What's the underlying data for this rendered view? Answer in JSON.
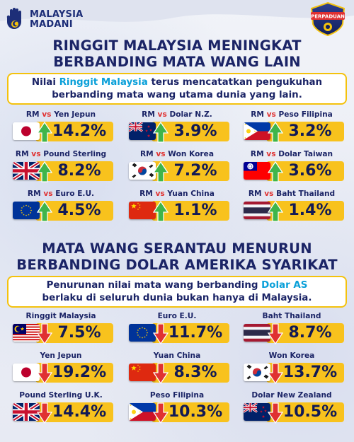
{
  "brand": {
    "line1": "MALAYSIA",
    "line2": "MADANI",
    "badge_text": "PERPADUAN"
  },
  "section1": {
    "title_line1": "RINGGIT MALAYSIA MENINGKAT",
    "title_line2": "BERBANDING MATA WANG LAIN",
    "subtitle_pre": "Nilai ",
    "subtitle_highlight": "Ringgit Malaysia",
    "subtitle_post": " terus mencatatkan pengukuhan",
    "subtitle_line2": "berbanding mata wang utama dunia yang lain.",
    "items": [
      {
        "rm": "RM",
        "vs": "vs",
        "currency": "Yen Jepun",
        "value": "14.2%",
        "flag": "japan-flag-icon"
      },
      {
        "rm": "RM",
        "vs": "vs",
        "currency": "Dolar N.Z.",
        "value": "3.9%",
        "flag": "new-zealand-flag-icon"
      },
      {
        "rm": "RM",
        "vs": "vs",
        "currency": "Peso Filipina",
        "value": "3.2%",
        "flag": "philippines-flag-icon"
      },
      {
        "rm": "RM",
        "vs": "vs",
        "currency": "Pound Sterling",
        "value": "8.2%",
        "flag": "uk-flag-icon"
      },
      {
        "rm": "RM",
        "vs": "vs",
        "currency": "Won Korea",
        "value": "7.2%",
        "flag": "south-korea-flag-icon"
      },
      {
        "rm": "RM",
        "vs": "vs",
        "currency": "Dolar Taiwan",
        "value": "3.6%",
        "flag": "taiwan-flag-icon"
      },
      {
        "rm": "RM",
        "vs": "vs",
        "currency": "Euro E.U.",
        "value": "4.5%",
        "flag": "eu-flag-icon"
      },
      {
        "rm": "RM",
        "vs": "vs",
        "currency": "Yuan China",
        "value": "1.1%",
        "flag": "china-flag-icon"
      },
      {
        "rm": "RM",
        "vs": "vs",
        "currency": "Baht Thailand",
        "value": "1.4%",
        "flag": "thailand-flag-icon"
      }
    ]
  },
  "section2": {
    "title_line1": "MATA WANG SERANTAU MENURUN",
    "title_line2": "BERBANDING DOLAR AMERIKA SYARIKAT",
    "subtitle_pre": "Penurunan nilai mata wang berbanding ",
    "subtitle_highlight": "Dolar AS",
    "subtitle_line2": "berlaku di seluruh dunia bukan hanya di Malaysia.",
    "items": [
      {
        "currency": "Ringgit Malaysia",
        "value": "7.5%",
        "flag": "malaysia-flag-icon"
      },
      {
        "currency": "Euro E.U.",
        "value": "11.7%",
        "flag": "eu-flag-icon"
      },
      {
        "currency": "Baht Thailand",
        "value": "8.7%",
        "flag": "thailand-flag-icon"
      },
      {
        "currency": "Yen Jepun",
        "value": "19.2%",
        "flag": "japan-flag-icon"
      },
      {
        "currency": "Yuan China",
        "value": "8.3%",
        "flag": "china-flag-icon"
      },
      {
        "currency": "Won Korea",
        "value": "13.7%",
        "flag": "south-korea-flag-icon"
      },
      {
        "currency": "Pound Sterling U.K.",
        "value": "14.4%",
        "flag": "uk-flag-icon"
      },
      {
        "currency": "Peso Filipina",
        "value": "10.3%",
        "flag": "philippines-flag-icon"
      },
      {
        "currency": "Dolar New Zealand",
        "value": "10.5%",
        "flag": "new-zealand-flag-icon"
      }
    ]
  },
  "colors": {
    "navy": "#1b2466",
    "gold": "#f8c21d",
    "up_arrow": "#3fb54a",
    "down_arrow": "#e03131",
    "highlight": "#0aa0d9"
  }
}
